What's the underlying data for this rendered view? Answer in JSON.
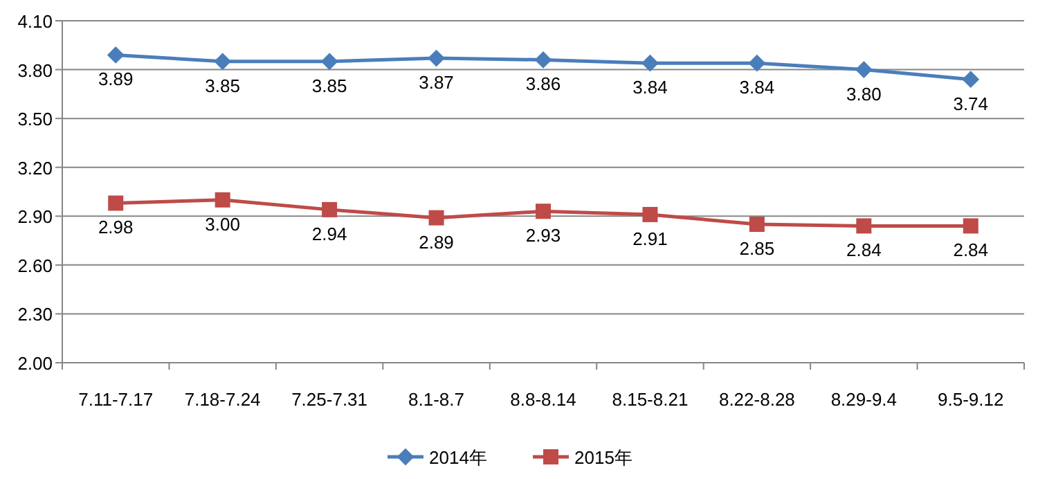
{
  "chart_data": {
    "type": "line",
    "categories": [
      "7.11-7.17",
      "7.18-7.24",
      "7.25-7.31",
      "8.1-8.7",
      "8.8-8.14",
      "8.15-8.21",
      "8.22-8.28",
      "8.29-9.4",
      "9.5-9.12"
    ],
    "series": [
      {
        "name": "2014年",
        "color": "#4a7ebb",
        "marker": "diamond",
        "values": [
          3.89,
          3.85,
          3.85,
          3.87,
          3.86,
          3.84,
          3.84,
          3.8,
          3.74
        ],
        "value_labels": [
          "3.89",
          "3.85",
          "3.85",
          "3.87",
          "3.86",
          "3.84",
          "3.84",
          "3.80",
          "3.74"
        ]
      },
      {
        "name": "2015年",
        "color": "#be4b48",
        "marker": "square",
        "values": [
          2.98,
          3.0,
          2.94,
          2.89,
          2.93,
          2.91,
          2.85,
          2.84,
          2.84
        ],
        "value_labels": [
          "2.98",
          "3.00",
          "2.94",
          "2.89",
          "2.93",
          "2.91",
          "2.85",
          "2.84",
          "2.84"
        ]
      }
    ],
    "ylim": [
      2.0,
      4.1
    ],
    "yticks": [
      {
        "value": 2.0,
        "label": "2.00"
      },
      {
        "value": 2.3,
        "label": "2.30"
      },
      {
        "value": 2.6,
        "label": "2.60"
      },
      {
        "value": 2.9,
        "label": "2.90"
      },
      {
        "value": 3.2,
        "label": "3.20"
      },
      {
        "value": 3.5,
        "label": "3.50"
      },
      {
        "value": 3.8,
        "label": "3.80"
      },
      {
        "value": 4.1,
        "label": "4.10"
      }
    ],
    "grid": "y",
    "legend": "bottom",
    "line_style": "solid"
  }
}
